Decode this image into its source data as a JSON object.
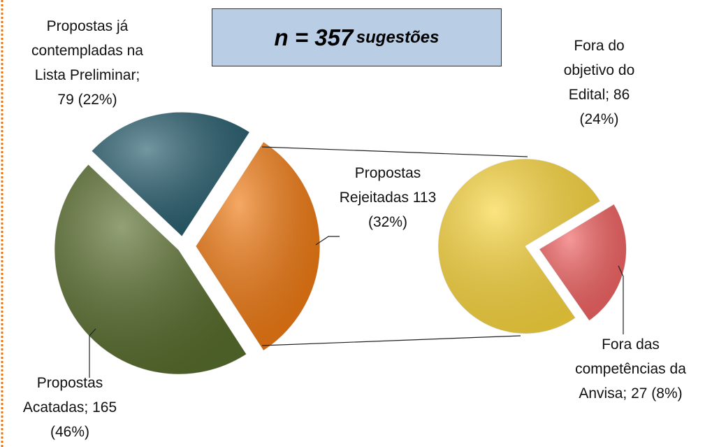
{
  "chart_data": {
    "type": "pie",
    "title": "n = 357",
    "subtitle": "sugestões",
    "categories": [
      "Propostas Rejeitadas",
      "Propostas Acatadas;",
      "Propostas já contempladas na Lista Preliminar;"
    ],
    "values": [
      113,
      165,
      79
    ],
    "value_labels": [
      "113 (32%)",
      "165 (46%)",
      "79 (22%)"
    ],
    "colors": [
      "#f07a12",
      "#5a6e2e",
      "#295f6f"
    ],
    "breakdown": {
      "categories": [
        "Fora das competências da Anvisa;",
        "Fora do objetivo do Edital;"
      ],
      "values": [
        27,
        86
      ],
      "value_labels": [
        "27 (8%)",
        "86 (24%)"
      ],
      "colors": [
        "#f26262",
        "#fad63e"
      ]
    }
  }
}
